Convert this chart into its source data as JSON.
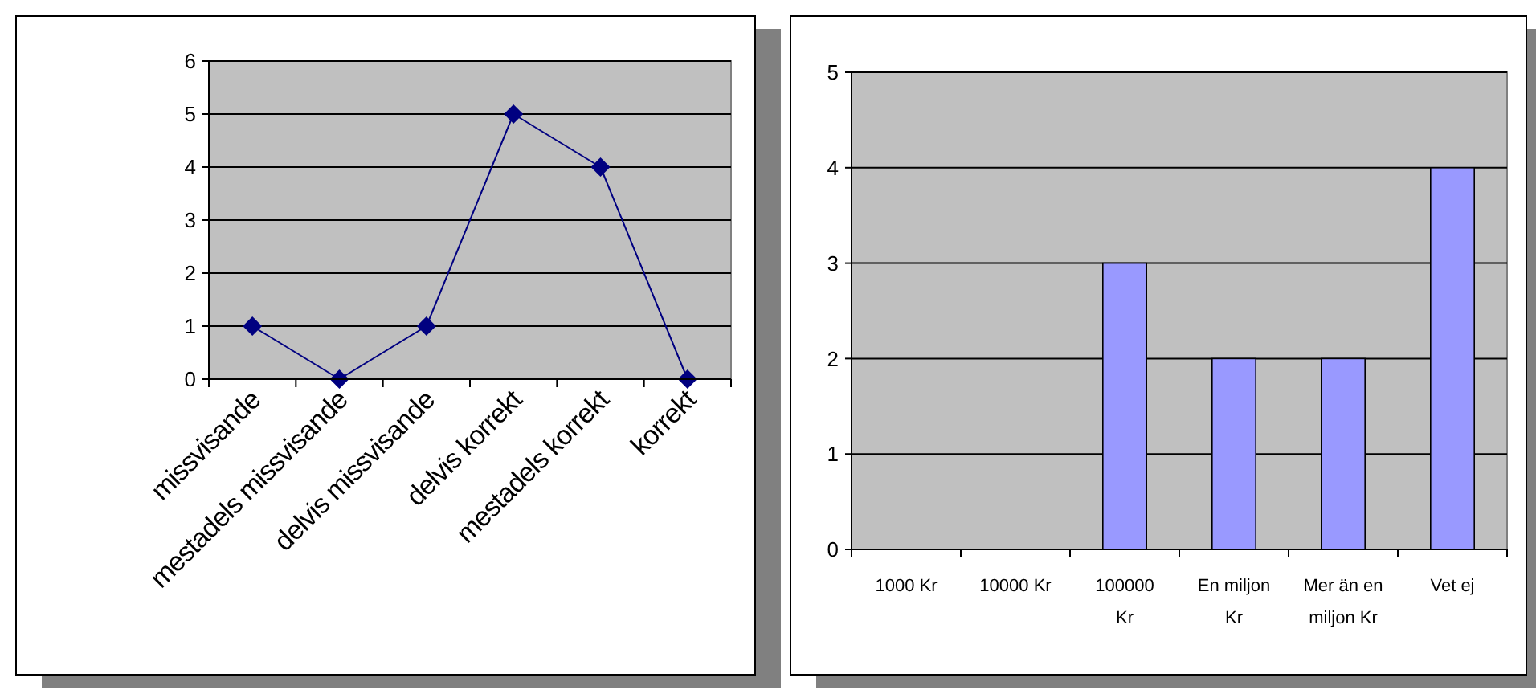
{
  "chart_data": [
    {
      "type": "line",
      "categories": [
        "missvisande",
        "mestadels missvisande",
        "delvis missvisande",
        "delvis korrekt",
        "mestadels korrekt",
        "korrekt"
      ],
      "values": [
        1,
        0,
        1,
        5,
        4,
        0
      ],
      "color": "#000080",
      "ylim": [
        0,
        6
      ],
      "yticks": [
        0,
        1,
        2,
        3,
        4,
        5,
        6
      ],
      "grid": "y",
      "marker": "diamond"
    },
    {
      "type": "bar",
      "categories": [
        "1000 Kr",
        "10000 Kr",
        "100000 Kr",
        "En miljon Kr",
        "Mer än en miljon Kr",
        "Vet ej"
      ],
      "values": [
        0,
        0,
        3,
        2,
        2,
        4
      ],
      "color": "#9999ff",
      "ylim": [
        0,
        5
      ],
      "yticks": [
        0,
        1,
        2,
        3,
        4,
        5
      ],
      "grid": "y"
    }
  ]
}
